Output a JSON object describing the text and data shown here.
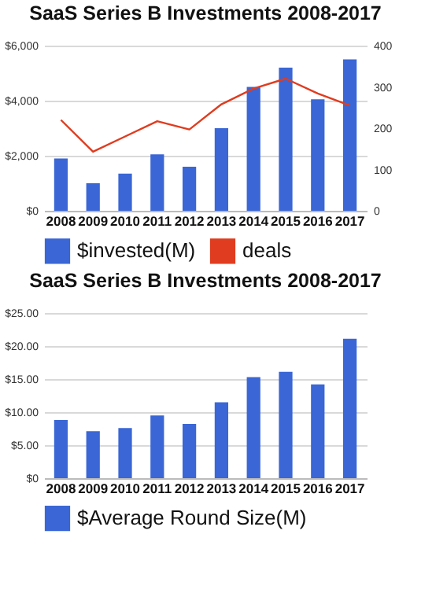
{
  "chart_data": [
    {
      "type": "bar",
      "title": "SaaS Series B Investments 2008-2017",
      "categories": [
        "2008",
        "2009",
        "2010",
        "2011",
        "2012",
        "2013",
        "2014",
        "2015",
        "2016",
        "2017"
      ],
      "series": [
        {
          "name": "$invested(M)",
          "color": "#3a66d6",
          "values": [
            1900,
            1000,
            1350,
            2050,
            1600,
            3000,
            4500,
            5200,
            4050,
            5500
          ]
        },
        {
          "name": "deals",
          "type": "line",
          "axis": "y2",
          "color": "#e03c1f",
          "values": [
            220,
            143,
            180,
            217,
            197,
            258,
            296,
            320,
            284,
            255
          ]
        }
      ],
      "ylim": [
        0,
        6000
      ],
      "yticks": [
        {
          "value": 0,
          "label": "$0"
        },
        {
          "value": 2000,
          "label": "$2,000"
        },
        {
          "value": 4000,
          "label": "$4,000"
        },
        {
          "value": 6000,
          "label": "$6,000"
        }
      ],
      "y2lim": [
        0,
        400
      ],
      "y2ticks": [
        0,
        100,
        200,
        300,
        400
      ],
      "grid": "y",
      "legend": "bottom"
    },
    {
      "type": "bar",
      "title": "SaaS Series B Investments 2008-2017",
      "categories": [
        "2008",
        "2009",
        "2010",
        "2011",
        "2012",
        "2013",
        "2014",
        "2015",
        "2016",
        "2017"
      ],
      "series": [
        {
          "name": "$Average Round Size(M)",
          "color": "#3a66d6",
          "values": [
            8.8,
            7.1,
            7.6,
            9.5,
            8.2,
            11.5,
            15.3,
            16.1,
            14.2,
            21.1
          ]
        }
      ],
      "ylim": [
        0,
        25
      ],
      "yticks": [
        {
          "value": 0,
          "label": "$0"
        },
        {
          "value": 5,
          "label": "$5.00"
        },
        {
          "value": 10,
          "label": "$10.00"
        },
        {
          "value": 15,
          "label": "$15.00"
        },
        {
          "value": 20,
          "label": "$20.00"
        },
        {
          "value": 25,
          "label": "$25.00"
        }
      ],
      "grid": "y",
      "legend": "bottom"
    }
  ]
}
